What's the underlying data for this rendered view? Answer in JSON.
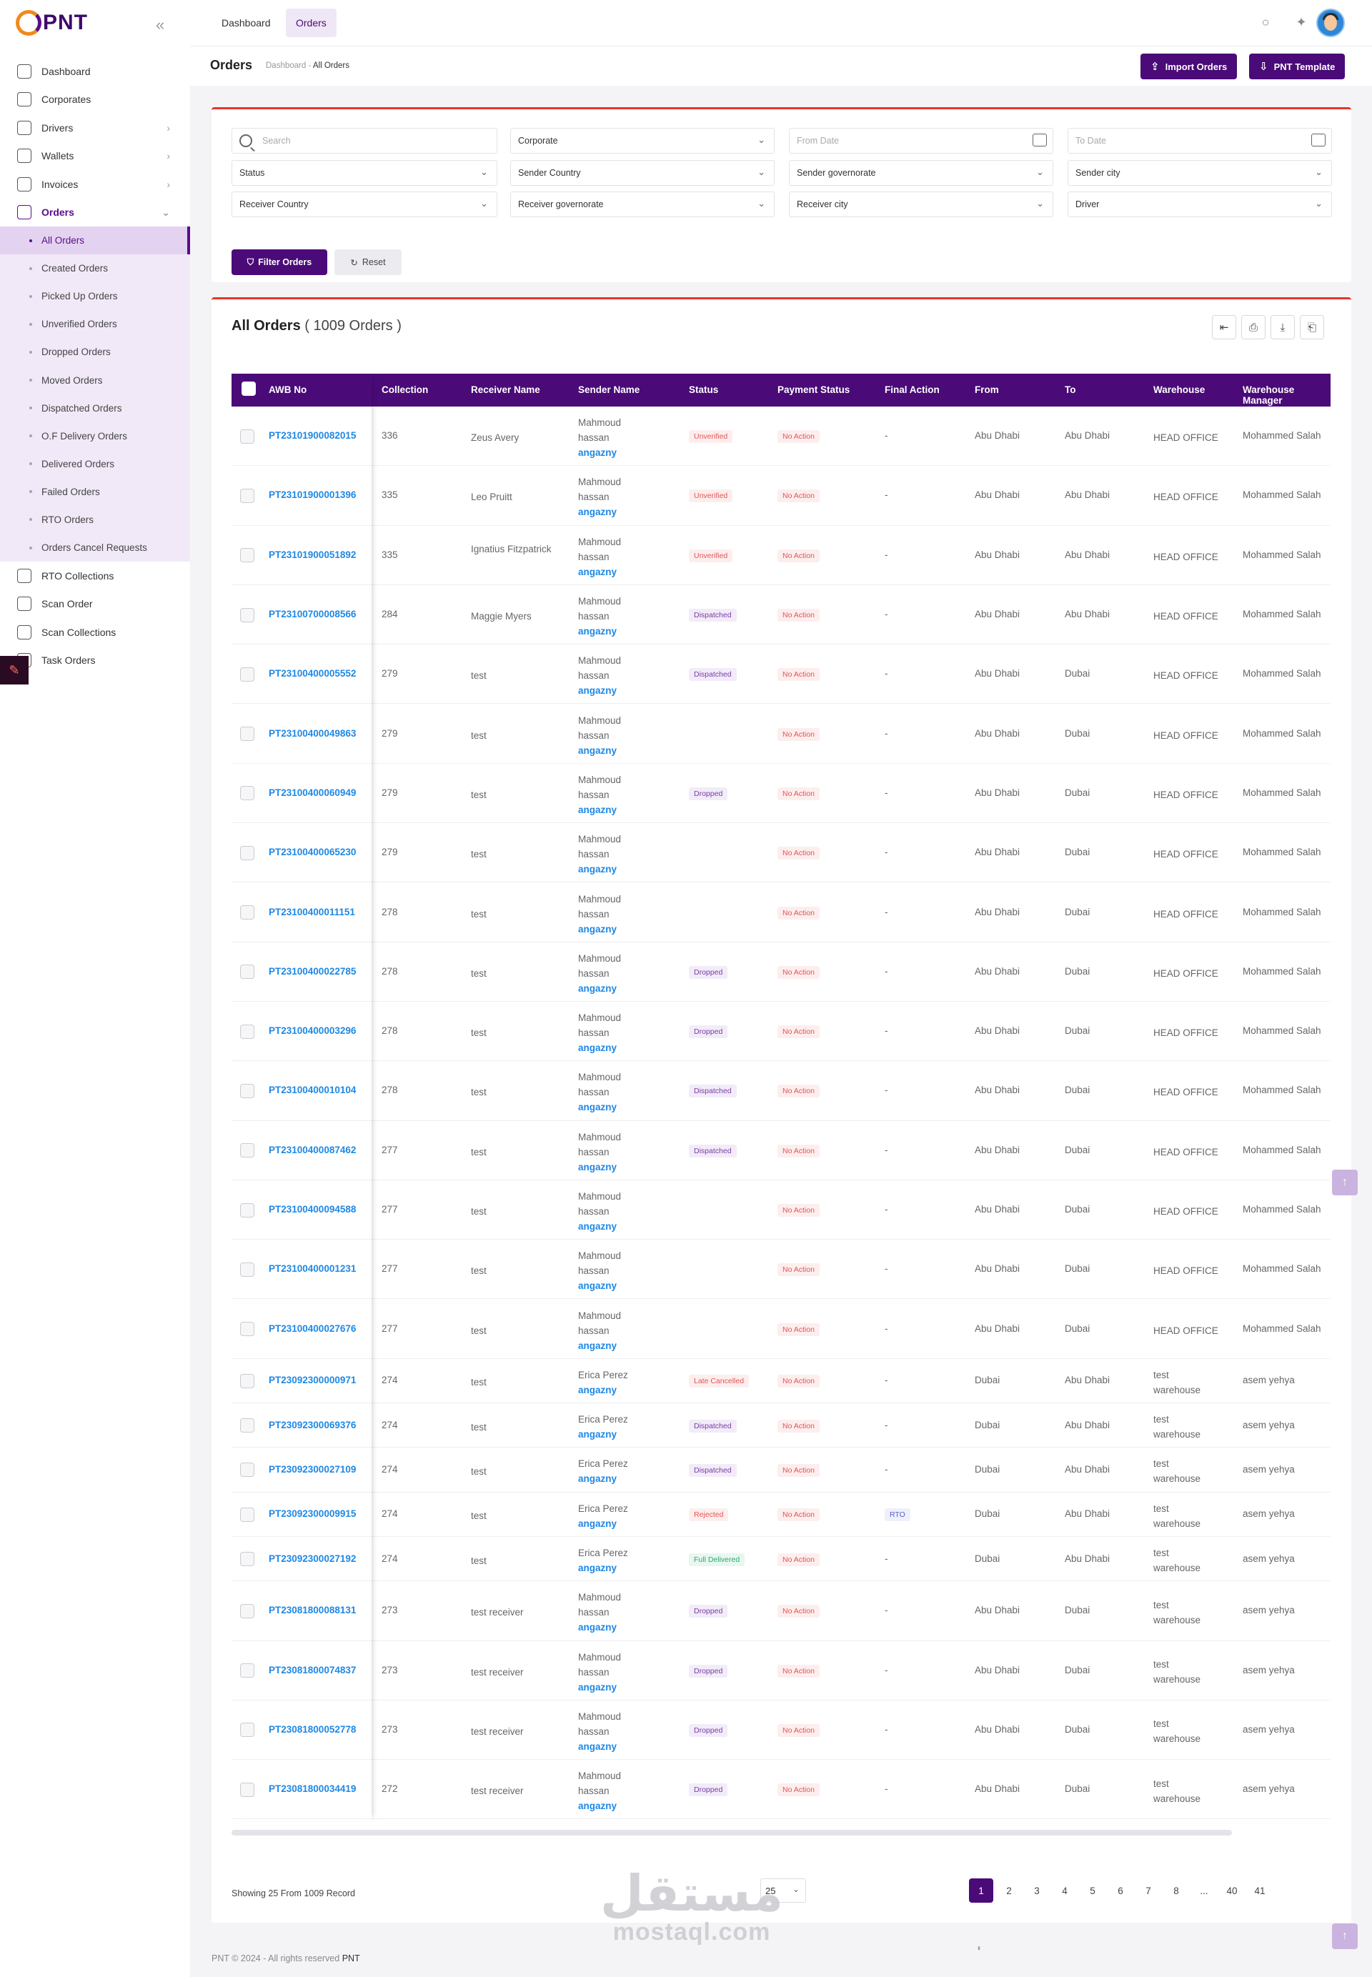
{
  "logo": {
    "text": "PNT"
  },
  "sidebar": {
    "items": [
      {
        "label": "Dashboard",
        "icon": "dashboard-icon",
        "chevron": false
      },
      {
        "label": "Corporates",
        "icon": "building-icon",
        "chevron": false
      },
      {
        "label": "Drivers",
        "icon": "users-icon",
        "chevron": true
      },
      {
        "label": "Wallets",
        "icon": "wallet-icon",
        "chevron": true
      },
      {
        "label": "Invoices",
        "icon": "invoice-icon",
        "chevron": true
      },
      {
        "label": "Orders",
        "icon": "orders-icon",
        "chevron": true
      }
    ],
    "orders_sub": [
      "All Orders",
      "Created Orders",
      "Picked Up Orders",
      "Unverified Orders",
      "Dropped Orders",
      "Moved Orders",
      "Dispatched Orders",
      "O.F Delivery Orders",
      "Delivered Orders",
      "Failed Orders",
      "RTO Orders",
      "Orders Cancel Requests"
    ],
    "items_after": [
      {
        "label": "RTO Collections",
        "icon": "rto-icon"
      },
      {
        "label": "Scan Order",
        "icon": "scan-icon"
      },
      {
        "label": "Scan Collections",
        "icon": "scan-icon"
      },
      {
        "label": "Task Orders",
        "icon": "task-icon"
      }
    ]
  },
  "header": {
    "tabs": [
      "Dashboard",
      "Orders"
    ]
  },
  "subheader": {
    "title": "Orders",
    "crumb_root": "Dashboard",
    "crumb_sep": "-",
    "crumb_current": "All Orders",
    "import_label": "Import Orders",
    "template_label": "PNT Template"
  },
  "filters": {
    "search_placeholder": "Search",
    "corporate": "Corporate",
    "from_date": "From Date",
    "to_date": "To Date",
    "status": "Status",
    "sender_country": "Sender Country",
    "sender_governorate": "Sender governorate",
    "sender_city": "Sender city",
    "receiver_country": "Receiver Country",
    "receiver_governorate": "Receiver governorate",
    "receiver_city": "Receiver city",
    "driver": "Driver",
    "filter_label": "Filter Orders",
    "reset_label": "Reset"
  },
  "table": {
    "title": "All Orders",
    "count": "( 1009 Orders )",
    "columns": [
      "AWB No",
      "Collection",
      "Receiver Name",
      "Sender Name",
      "Status",
      "Payment Status",
      "Final Action",
      "From",
      "To",
      "Warehouse",
      "Warehouse Manager"
    ],
    "rows": [
      {
        "awb": "PT23101900082015",
        "coll": "336",
        "recv": "Zeus Avery",
        "sender": [
          "Mahmoud",
          "hassan"
        ],
        "company": "angazny",
        "status": "Unverified",
        "pay": "No Action",
        "final": "-",
        "from": "Abu Dhabi",
        "to": "Abu Dhabi",
        "wh": [
          "HEAD OFFICE"
        ],
        "mgr": "Mohammed Salah"
      },
      {
        "awb": "PT23101900001396",
        "coll": "335",
        "recv": "Leo Pruitt",
        "sender": [
          "Mahmoud",
          "hassan"
        ],
        "company": "angazny",
        "status": "Unverified",
        "pay": "No Action",
        "final": "-",
        "from": "Abu Dhabi",
        "to": "Abu Dhabi",
        "wh": [
          "HEAD OFFICE"
        ],
        "mgr": "Mohammed Salah"
      },
      {
        "awb": "PT23101900051892",
        "coll": "335",
        "recv": "Ignatius Fitzpatrick",
        "sender": [
          "Mahmoud",
          "hassan"
        ],
        "company": "angazny",
        "status": "Unverified",
        "pay": "No Action",
        "final": "-",
        "from": "Abu Dhabi",
        "to": "Abu Dhabi",
        "wh": [
          "HEAD OFFICE"
        ],
        "mgr": "Mohammed Salah"
      },
      {
        "awb": "PT23100700008566",
        "coll": "284",
        "recv": "Maggie Myers",
        "sender": [
          "Mahmoud",
          "hassan"
        ],
        "company": "angazny",
        "status": "Dispatched",
        "pay": "No Action",
        "final": "-",
        "from": "Abu Dhabi",
        "to": "Abu Dhabi",
        "wh": [
          "HEAD OFFICE"
        ],
        "mgr": "Mohammed Salah"
      },
      {
        "awb": "PT23100400005552",
        "coll": "279",
        "recv": "test",
        "sender": [
          "Mahmoud",
          "hassan"
        ],
        "company": "angazny",
        "status": "Dispatched",
        "pay": "No Action",
        "final": "-",
        "from": "Abu Dhabi",
        "to": "Dubai",
        "wh": [
          "HEAD OFFICE"
        ],
        "mgr": "Mohammed Salah"
      },
      {
        "awb": "PT23100400049863",
        "coll": "279",
        "recv": "test",
        "sender": [
          "Mahmoud",
          "hassan"
        ],
        "company": "angazny",
        "status": "",
        "pay": "No Action",
        "final": "-",
        "from": "Abu Dhabi",
        "to": "Dubai",
        "wh": [
          "HEAD OFFICE"
        ],
        "mgr": "Mohammed Salah"
      },
      {
        "awb": "PT23100400060949",
        "coll": "279",
        "recv": "test",
        "sender": [
          "Mahmoud",
          "hassan"
        ],
        "company": "angazny",
        "status": "Dropped",
        "pay": "No Action",
        "final": "-",
        "from": "Abu Dhabi",
        "to": "Dubai",
        "wh": [
          "HEAD OFFICE"
        ],
        "mgr": "Mohammed Salah"
      },
      {
        "awb": "PT23100400065230",
        "coll": "279",
        "recv": "test",
        "sender": [
          "Mahmoud",
          "hassan"
        ],
        "company": "angazny",
        "status": "",
        "pay": "No Action",
        "final": "-",
        "from": "Abu Dhabi",
        "to": "Dubai",
        "wh": [
          "HEAD OFFICE"
        ],
        "mgr": "Mohammed Salah"
      },
      {
        "awb": "PT23100400011151",
        "coll": "278",
        "recv": "test",
        "sender": [
          "Mahmoud",
          "hassan"
        ],
        "company": "angazny",
        "status": "",
        "pay": "No Action",
        "final": "-",
        "from": "Abu Dhabi",
        "to": "Dubai",
        "wh": [
          "HEAD OFFICE"
        ],
        "mgr": "Mohammed Salah"
      },
      {
        "awb": "PT23100400022785",
        "coll": "278",
        "recv": "test",
        "sender": [
          "Mahmoud",
          "hassan"
        ],
        "company": "angazny",
        "status": "Dropped",
        "pay": "No Action",
        "final": "-",
        "from": "Abu Dhabi",
        "to": "Dubai",
        "wh": [
          "HEAD OFFICE"
        ],
        "mgr": "Mohammed Salah"
      },
      {
        "awb": "PT23100400003296",
        "coll": "278",
        "recv": "test",
        "sender": [
          "Mahmoud",
          "hassan"
        ],
        "company": "angazny",
        "status": "Dropped",
        "pay": "No Action",
        "final": "-",
        "from": "Abu Dhabi",
        "to": "Dubai",
        "wh": [
          "HEAD OFFICE"
        ],
        "mgr": "Mohammed Salah"
      },
      {
        "awb": "PT23100400010104",
        "coll": "278",
        "recv": "test",
        "sender": [
          "Mahmoud",
          "hassan"
        ],
        "company": "angazny",
        "status": "Dispatched",
        "pay": "No Action",
        "final": "-",
        "from": "Abu Dhabi",
        "to": "Dubai",
        "wh": [
          "HEAD OFFICE"
        ],
        "mgr": "Mohammed Salah"
      },
      {
        "awb": "PT23100400087462",
        "coll": "277",
        "recv": "test",
        "sender": [
          "Mahmoud",
          "hassan"
        ],
        "company": "angazny",
        "status": "Dispatched",
        "pay": "No Action",
        "final": "-",
        "from": "Abu Dhabi",
        "to": "Dubai",
        "wh": [
          "HEAD OFFICE"
        ],
        "mgr": "Mohammed Salah"
      },
      {
        "awb": "PT23100400094588",
        "coll": "277",
        "recv": "test",
        "sender": [
          "Mahmoud",
          "hassan"
        ],
        "company": "angazny",
        "status": "",
        "pay": "No Action",
        "final": "-",
        "from": "Abu Dhabi",
        "to": "Dubai",
        "wh": [
          "HEAD OFFICE"
        ],
        "mgr": "Mohammed Salah"
      },
      {
        "awb": "PT23100400001231",
        "coll": "277",
        "recv": "test",
        "sender": [
          "Mahmoud",
          "hassan"
        ],
        "company": "angazny",
        "status": "",
        "pay": "No Action",
        "final": "-",
        "from": "Abu Dhabi",
        "to": "Dubai",
        "wh": [
          "HEAD OFFICE"
        ],
        "mgr": "Mohammed Salah"
      },
      {
        "awb": "PT23100400027676",
        "coll": "277",
        "recv": "test",
        "sender": [
          "Mahmoud",
          "hassan"
        ],
        "company": "angazny",
        "status": "",
        "pay": "No Action",
        "final": "-",
        "from": "Abu Dhabi",
        "to": "Dubai",
        "wh": [
          "HEAD OFFICE"
        ],
        "mgr": "Mohammed Salah"
      },
      {
        "awb": "PT23092300000971",
        "coll": "274",
        "recv": "test",
        "sender": [
          "Erica Perez"
        ],
        "company": "angazny",
        "status": "Late Cancelled",
        "pay": "No Action",
        "final": "-",
        "from": "Dubai",
        "to": "Abu Dhabi",
        "wh": [
          "test",
          "warehouse"
        ],
        "mgr": "asem yehya"
      },
      {
        "awb": "PT23092300069376",
        "coll": "274",
        "recv": "test",
        "sender": [
          "Erica Perez"
        ],
        "company": "angazny",
        "status": "Dispatched",
        "pay": "No Action",
        "final": "-",
        "from": "Dubai",
        "to": "Abu Dhabi",
        "wh": [
          "test",
          "warehouse"
        ],
        "mgr": "asem yehya"
      },
      {
        "awb": "PT23092300027109",
        "coll": "274",
        "recv": "test",
        "sender": [
          "Erica Perez"
        ],
        "company": "angazny",
        "status": "Dispatched",
        "pay": "No Action",
        "final": "-",
        "from": "Dubai",
        "to": "Abu Dhabi",
        "wh": [
          "test",
          "warehouse"
        ],
        "mgr": "asem yehya"
      },
      {
        "awb": "PT23092300009915",
        "coll": "274",
        "recv": "test",
        "sender": [
          "Erica Perez"
        ],
        "company": "angazny",
        "status": "Rejected",
        "pay": "No Action",
        "final": "RTO",
        "from": "Dubai",
        "to": "Abu Dhabi",
        "wh": [
          "test",
          "warehouse"
        ],
        "mgr": "asem yehya"
      },
      {
        "awb": "PT23092300027192",
        "coll": "274",
        "recv": "test",
        "sender": [
          "Erica Perez"
        ],
        "company": "angazny",
        "status": "Full Delivered",
        "pay": "No Action",
        "final": "-",
        "from": "Dubai",
        "to": "Abu Dhabi",
        "wh": [
          "test",
          "warehouse"
        ],
        "mgr": "asem yehya"
      },
      {
        "awb": "PT23081800088131",
        "coll": "273",
        "recv": "test receiver",
        "sender": [
          "Mahmoud",
          "hassan"
        ],
        "company": "angazny",
        "status": "Dropped",
        "pay": "No Action",
        "final": "-",
        "from": "Abu Dhabi",
        "to": "Dubai",
        "wh": [
          "test",
          "warehouse"
        ],
        "mgr": "asem yehya"
      },
      {
        "awb": "PT23081800074837",
        "coll": "273",
        "recv": "test receiver",
        "sender": [
          "Mahmoud",
          "hassan"
        ],
        "company": "angazny",
        "status": "Dropped",
        "pay": "No Action",
        "final": "-",
        "from": "Abu Dhabi",
        "to": "Dubai",
        "wh": [
          "test",
          "warehouse"
        ],
        "mgr": "asem yehya"
      },
      {
        "awb": "PT23081800052778",
        "coll": "273",
        "recv": "test receiver",
        "sender": [
          "Mahmoud",
          "hassan"
        ],
        "company": "angazny",
        "status": "Dropped",
        "pay": "No Action",
        "final": "-",
        "from": "Abu Dhabi",
        "to": "Dubai",
        "wh": [
          "test",
          "warehouse"
        ],
        "mgr": "asem yehya"
      },
      {
        "awb": "PT23081800034419",
        "coll": "272",
        "recv": "test receiver",
        "sender": [
          "Mahmoud",
          "hassan"
        ],
        "company": "angazny",
        "status": "Dropped",
        "pay": "No Action",
        "final": "-",
        "from": "Abu Dhabi",
        "to": "Dubai",
        "wh": [
          "test",
          "warehouse"
        ],
        "mgr": "asem yehya"
      }
    ]
  },
  "pagination": {
    "showing": "Showing 25 From 1009 Record",
    "per_page": "25",
    "pages": [
      "1",
      "2",
      "3",
      "4",
      "5",
      "6",
      "7",
      "8",
      "...",
      "40",
      "41"
    ],
    "active": "1",
    "prev": "‹",
    "next": "›"
  },
  "footer": {
    "text": "PNT © 2024 - All rights reserved",
    "brand": "PNT"
  },
  "watermark": {
    "arabic": "مستقل",
    "latin": "mostaql.com"
  },
  "colors": {
    "primary": "#4a0a78",
    "accent": "#e8352d",
    "link": "#1e88e5"
  }
}
